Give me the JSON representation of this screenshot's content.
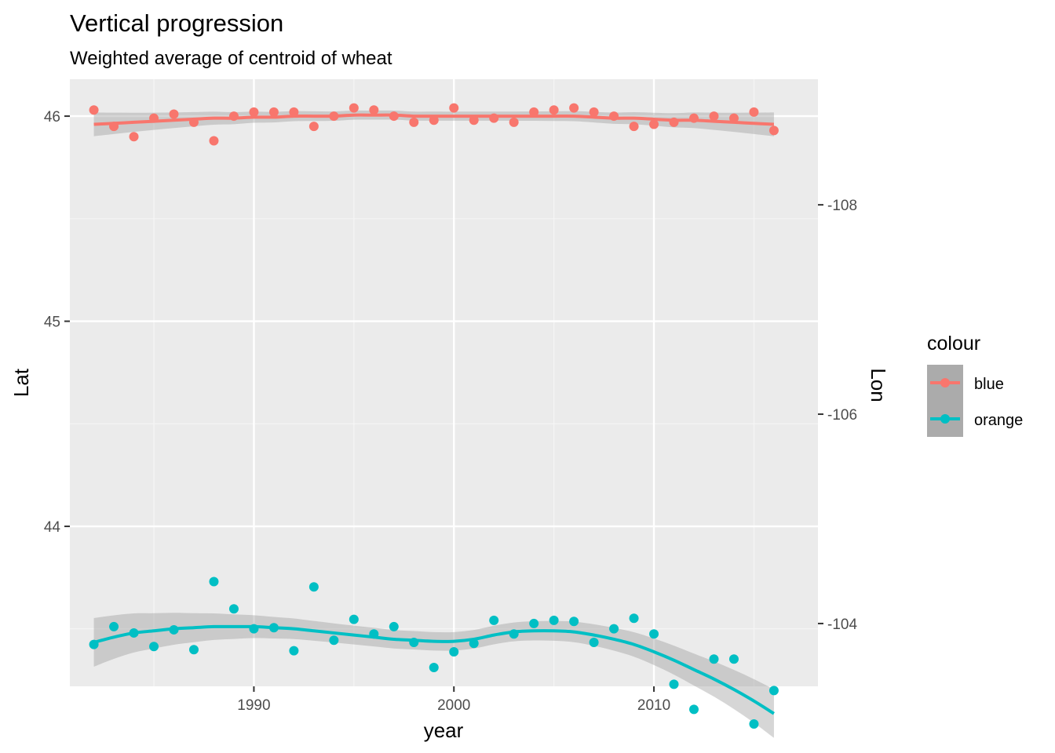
{
  "chart_data": {
    "type": "scatter",
    "title": "Vertical progression",
    "subtitle": "Weighted average of centroid of wheat",
    "xlabel": "year",
    "ylabel": "Lat",
    "y2label": "Lon",
    "xlim": [
      1980.8,
      2018.2
    ],
    "ylim": [
      43.22,
      46.18
    ],
    "y2lim": [
      -103.4,
      -109.2
    ],
    "x_ticks": [
      1990,
      2000,
      2010
    ],
    "x_tick_labels": [
      "1990",
      "2000",
      "2010"
    ],
    "y_ticks": [
      44,
      45,
      46
    ],
    "y_tick_labels": [
      "44",
      "45",
      "46"
    ],
    "y2_ticks": [
      -104,
      -106,
      -108
    ],
    "y2_tick_labels": [
      "-104",
      "-106",
      "-108"
    ],
    "grid": true,
    "legend_placement": "right",
    "legend_title": "colour",
    "x": [
      1982,
      1983,
      1984,
      1985,
      1986,
      1987,
      1988,
      1989,
      1990,
      1991,
      1992,
      1993,
      1994,
      1995,
      1996,
      1997,
      1998,
      1999,
      2000,
      2001,
      2002,
      2003,
      2004,
      2005,
      2006,
      2007,
      2008,
      2009,
      2010,
      2011,
      2012,
      2013,
      2014,
      2015,
      2016
    ],
    "series": [
      {
        "name": "blue",
        "color": "#F8766D",
        "axis": "left",
        "values": [
          46.03,
          45.95,
          45.9,
          45.99,
          46.01,
          45.97,
          45.88,
          46.0,
          46.02,
          46.02,
          46.02,
          45.95,
          46.0,
          46.04,
          46.03,
          46.0,
          45.97,
          45.98,
          46.04,
          45.98,
          45.99,
          45.97,
          46.02,
          46.03,
          46.04,
          46.02,
          46.0,
          45.95,
          45.96,
          45.97,
          45.99,
          46.0,
          45.99,
          46.02,
          45.93
        ],
        "smooth": [
          45.96,
          45.965,
          45.97,
          45.975,
          45.98,
          45.985,
          45.99,
          45.99,
          45.995,
          45.995,
          46.0,
          46.0,
          46.0,
          46.005,
          46.005,
          46.005,
          46.0,
          46.0,
          46.0,
          46.0,
          46.0,
          46.0,
          46.0,
          46.0,
          46.0,
          45.995,
          45.99,
          45.99,
          45.985,
          45.98,
          45.98,
          45.975,
          45.97,
          45.965,
          45.96
        ],
        "band": 0.04
      },
      {
        "name": "orange",
        "color": "#00BFC4",
        "axis": "right",
        "values": [
          -103.8,
          -103.97,
          -103.91,
          -103.78,
          -103.94,
          -103.75,
          -104.4,
          -104.14,
          -103.95,
          -103.96,
          -103.74,
          -104.35,
          -103.84,
          -104.04,
          -103.9,
          -103.97,
          -103.82,
          -103.58,
          -103.73,
          -103.81,
          -104.03,
          -103.9,
          -104.0,
          -104.03,
          -104.02,
          -103.82,
          -103.95,
          -104.05,
          -103.9,
          -103.42,
          -103.18,
          -103.66,
          -103.66,
          -103.04,
          -103.36
        ],
        "smooth": [
          -103.82,
          -103.87,
          -103.91,
          -103.93,
          -103.95,
          -103.96,
          -103.97,
          -103.97,
          -103.97,
          -103.96,
          -103.95,
          -103.93,
          -103.91,
          -103.89,
          -103.87,
          -103.85,
          -103.84,
          -103.83,
          -103.83,
          -103.85,
          -103.89,
          -103.92,
          -103.93,
          -103.93,
          -103.92,
          -103.89,
          -103.85,
          -103.8,
          -103.73,
          -103.65,
          -103.56,
          -103.47,
          -103.37,
          -103.26,
          -103.14
        ],
        "band": 0.16
      }
    ]
  }
}
